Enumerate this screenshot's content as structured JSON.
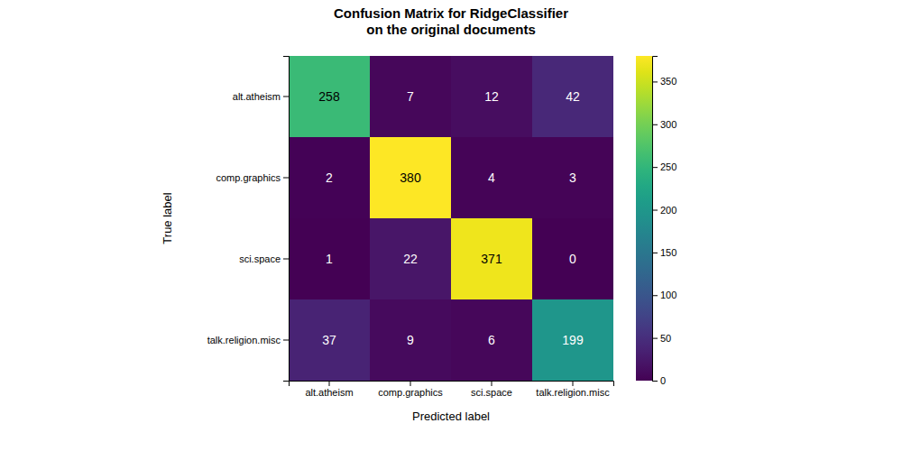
{
  "chart_data": {
    "type": "heatmap",
    "title": "Confusion Matrix for RidgeClassifier\non the original documents",
    "xlabel": "Predicted label",
    "ylabel": "True label",
    "categories": [
      "alt.atheism",
      "comp.graphics",
      "sci.space",
      "talk.religion.misc"
    ],
    "values": [
      [
        258,
        7,
        12,
        42
      ],
      [
        2,
        380,
        4,
        3
      ],
      [
        1,
        22,
        371,
        0
      ],
      [
        37,
        9,
        6,
        199
      ]
    ],
    "color_range": [
      0,
      380
    ],
    "color_ticks": [
      0,
      50,
      100,
      150,
      200,
      250,
      300,
      350
    ],
    "data_labels": true
  }
}
